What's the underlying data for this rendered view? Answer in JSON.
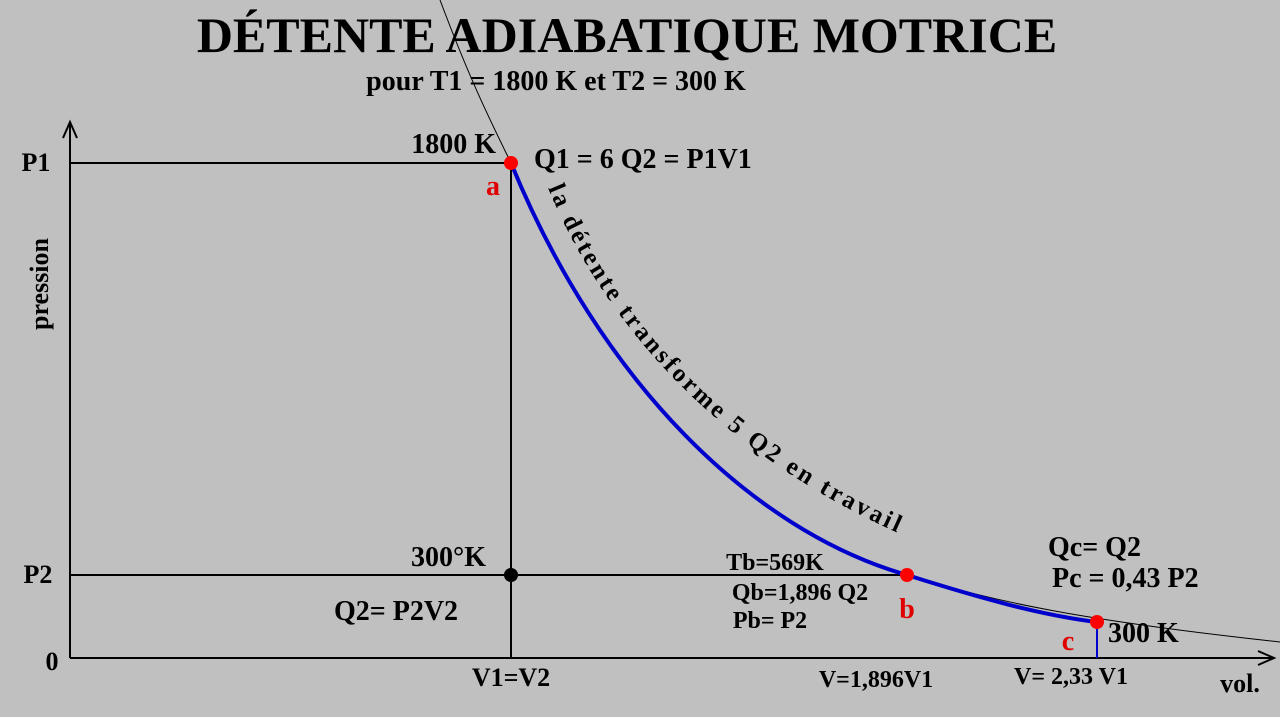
{
  "header": {
    "title": "DÉTENTE ADIABATIQUE MOTRICE",
    "subtitle": "pour T1 = 1800 K et T2 = 300 K"
  },
  "axes": {
    "y_label": "pression",
    "x_label": "vol.",
    "origin": "0",
    "p1": "P1",
    "p2": "P2"
  },
  "points": {
    "a": {
      "label": "a",
      "temperature": "1800 K",
      "heat": "Q1 = 6 Q2 = P1V1"
    },
    "b": {
      "label": "b",
      "temperature": "Tb=569K",
      "heat": "Qb=1,896 Q2",
      "pressure": "Pb= P2",
      "volume": "V=1,896V1"
    },
    "c": {
      "label": "c",
      "temperature": "300 K",
      "heat": "Qc= Q2",
      "pressure": "Pc = 0,43 P2",
      "volume": "V= 2,33 V1"
    },
    "state2": {
      "temperature": "300°K",
      "heat": "Q2= P2V2",
      "volume": "V1=V2"
    }
  },
  "curve_label": "la détente transforme 5 Q2 en travail"
}
